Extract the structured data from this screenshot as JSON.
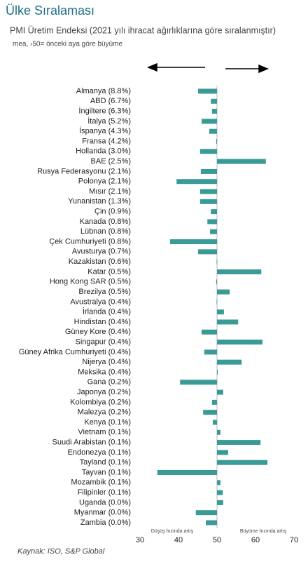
{
  "chart_data": {
    "type": "hbar",
    "title": "Ülke Sıralaması",
    "subtitle": "PMI Üretim Endeksi (2021 yılı ihracat ağırlıklarına göre sıralanmıştır)",
    "note": "mea, ›50= önceki aya göre büyüme",
    "source": "Kaynak: ISO, S&P Global",
    "xlabel_left": "Düşüş hızında artış",
    "xlabel_right": "Büyüme hızında artış",
    "categories": [
      "Almanya (8.8%)",
      "ABD (6.7%)",
      "İngiltere (6.3%)",
      "İtalya (5.2%)",
      "İspanya (4.3%)",
      "Fransa (4.2%)",
      "Hollanda (3.0%)",
      "BAE (2.5%)",
      "Rusya Federasyonu (2.1%)",
      "Polonya (2.1%)",
      "Mısır (2.1%)",
      "Yunanistan (1.3%)",
      "Çin (0.9%)",
      "Kanada (0.8%)",
      "Lübnan (0.8%)",
      "Çek Cumhuriyeti (0.8%)",
      "Avusturya (0.7%)",
      "Kazakistan (0.6%)",
      "Katar (0.5%)",
      "Hong Kong SAR (0.5%)",
      "Brezilya (0.5%)",
      "Avustralya (0.4%)",
      "İrlanda (0.4%)",
      "Hindistan (0.4%)",
      "Güney Kore (0.4%)",
      "Singapur (0.4%)",
      "Güney Afrika Cumhuriyeti (0.4%)",
      "Nijerya (0.4%)",
      "Meksika (0.4%)",
      "Gana (0.2%)",
      "Japonya (0.2%)",
      "Kolombiya (0.2%)",
      "Malezya (0.2%)",
      "Kenya (0.1%)",
      "Vietnam (0.1%)",
      "Suudi Arabistan (0.1%)",
      "Endonezya (0.1%)",
      "Tayland (0.1%)",
      "Tayvan (0.1%)",
      "Mozambik (0.1%)",
      "Filipinler (0.1%)",
      "Uganda (0.0%)",
      "Myanmar (0.0%)",
      "Zambia (0.0%)"
    ],
    "values": [
      45.1,
      48.4,
      48.7,
      46.0,
      48.0,
      49.8,
      45.6,
      62.7,
      45.8,
      39.5,
      45.6,
      45.6,
      48.4,
      47.5,
      48.2,
      37.8,
      45.1,
      49.9,
      61.5,
      49.8,
      53.3,
      49.9,
      51.8,
      55.5,
      46.0,
      61.8,
      46.7,
      56.4,
      50.2,
      40.4,
      51.6,
      48.7,
      46.4,
      48.9,
      50.9,
      61.3,
      52.9,
      63.1,
      34.5,
      50.9,
      51.5,
      51.6,
      44.5,
      47.1
    ],
    "color": "#3a9a96",
    "baseline": 50,
    "xlim": [
      30,
      70
    ],
    "xticks": [
      30,
      40,
      50,
      60,
      70
    ]
  }
}
